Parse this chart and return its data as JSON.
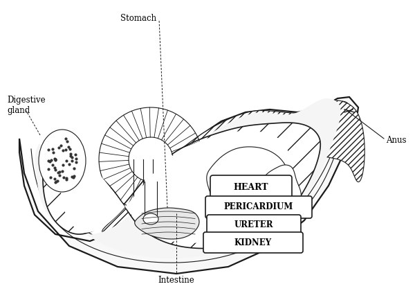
{
  "bg_color": "#ffffff",
  "line_color": "#1a1a1a",
  "labels": {
    "digestive_gland": "Digestive\ngland",
    "stomach": "Stomach",
    "heart": "HEART",
    "pericardium": "PERICARDIUM",
    "ureter": "URETER",
    "kidney": "KIDNEY",
    "anus": "Anus",
    "intestine": "Intestine"
  }
}
